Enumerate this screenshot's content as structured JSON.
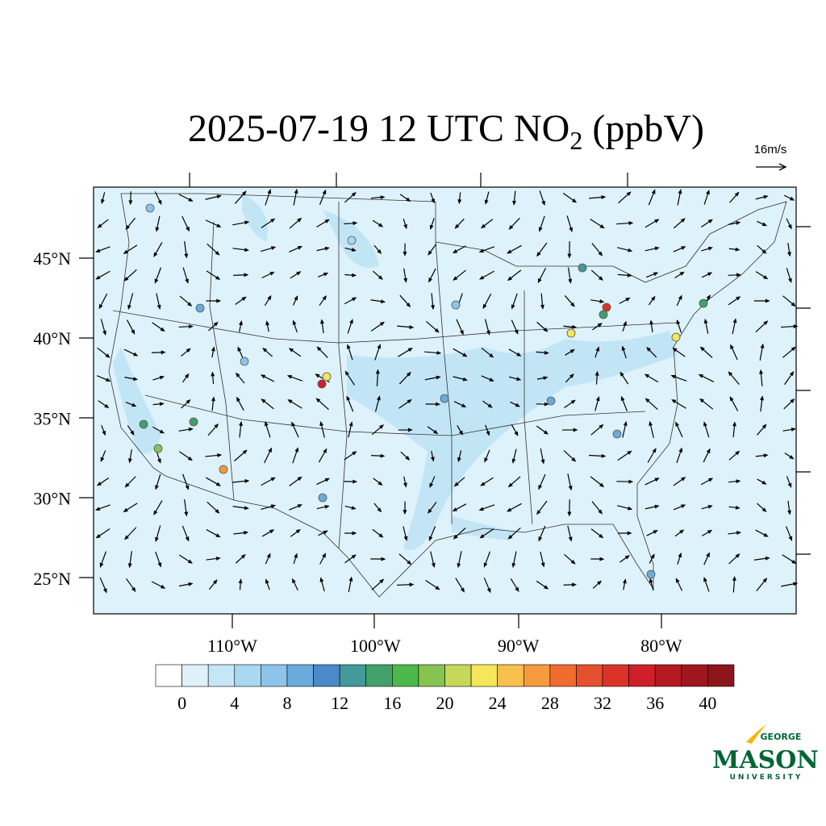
{
  "title": {
    "main": "2025-07-19 12 UTC NO",
    "subscript": "2",
    "suffix": " (ppbV)"
  },
  "vector_reference": "16m/s",
  "lat_labels": [
    "45°N",
    "40°N",
    "35°N",
    "30°N",
    "25°N"
  ],
  "lon_labels": [
    "110°W",
    "100°W",
    "90°W",
    "80°W"
  ],
  "colorbar": {
    "colors": [
      "#ffffff",
      "#dff0f9",
      "#c5e6f6",
      "#a8d8f2",
      "#8cc4ea",
      "#6aaadc",
      "#4a8ac8",
      "#44999a",
      "#43a06a",
      "#4bb84a",
      "#86c350",
      "#c5d85a",
      "#f6e65a",
      "#f7c04e",
      "#f59a3e",
      "#f06c2e",
      "#e5502e",
      "#db3328",
      "#cf1f2a",
      "#b51a22",
      "#a0161f",
      "#8b1519"
    ],
    "labels": [
      "0",
      "4",
      "8",
      "12",
      "16",
      "20",
      "24",
      "28",
      "32",
      "36",
      "40"
    ]
  },
  "logo": {
    "top": "GEORGE",
    "main": "MASON",
    "bottom": "UNIVERSITY"
  }
}
